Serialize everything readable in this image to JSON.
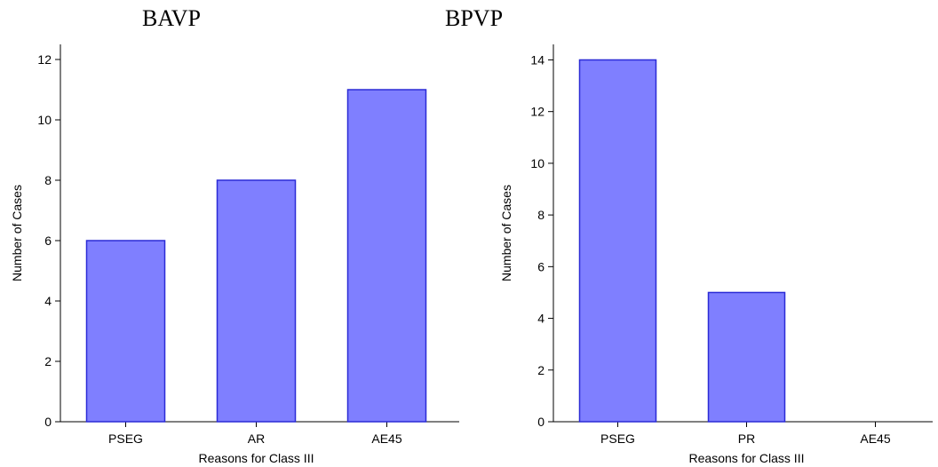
{
  "chart_data": [
    {
      "type": "bar",
      "title": "BAVP",
      "categories": [
        "PSEG",
        "AR",
        "AE45"
      ],
      "values": [
        6,
        8,
        11
      ],
      "xlabel": "Reasons for Class III",
      "ylabel": "Number of Cases",
      "ylim": [
        0,
        12.5
      ],
      "yticks": [
        0,
        2,
        4,
        6,
        8,
        10,
        12
      ],
      "bar_color": "#7f7fff",
      "bar_edge_color": "#2b2bd6",
      "grid": false
    },
    {
      "type": "bar",
      "title": "BPVP",
      "categories": [
        "PSEG",
        "PR",
        "AE45"
      ],
      "values": [
        14,
        5,
        0
      ],
      "xlabel": "Reasons for Class III",
      "ylabel": "Number of Cases",
      "ylim": [
        0,
        14.6
      ],
      "yticks": [
        0,
        2,
        4,
        6,
        8,
        10,
        12,
        14
      ],
      "bar_color": "#7f7fff",
      "bar_edge_color": "#2b2bd6",
      "grid": false
    }
  ]
}
